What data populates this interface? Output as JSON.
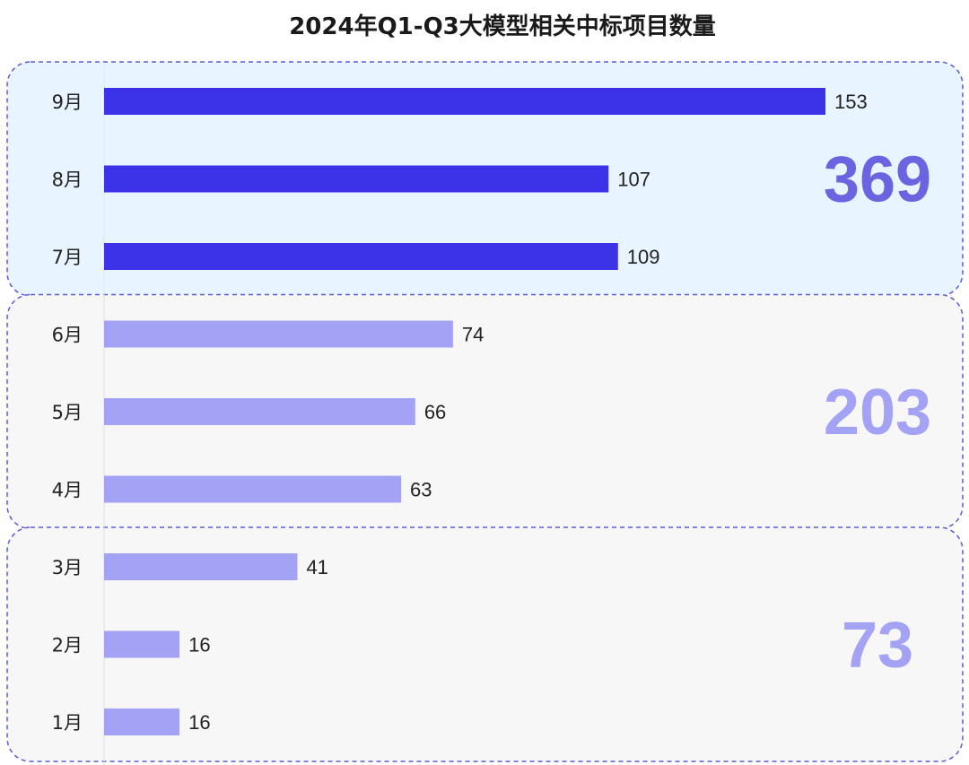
{
  "chart_data": {
    "type": "bar",
    "orientation": "horizontal",
    "title": "2024年Q1-Q3大模型相关中标项目数量",
    "categories": [
      "9月",
      "8月",
      "7月",
      "6月",
      "5月",
      "4月",
      "3月",
      "2月",
      "1月"
    ],
    "values": [
      153,
      107,
      109,
      74,
      66,
      63,
      41,
      16,
      16
    ],
    "xlim": [
      0,
      160
    ],
    "grid": false,
    "legend": "none",
    "groups": [
      {
        "months": [
          "9月",
          "8月",
          "7月"
        ],
        "total": "369",
        "bar_color": "#3c33e8",
        "total_color": "#6c63e0",
        "bg_color": "#e8f4ff"
      },
      {
        "months": [
          "6月",
          "5月",
          "4月"
        ],
        "total": "203",
        "bar_color": "#a3a2f5",
        "total_color": "#a3a2f5",
        "bg_color": "#f7f7f7"
      },
      {
        "months": [
          "3月",
          "2月",
          "1月"
        ],
        "total": "73",
        "bar_color": "#a3a2f5",
        "total_color": "#a3a2f5",
        "bg_color": "#f7f7f7"
      }
    ]
  },
  "colors": {
    "border": "#5b5bd6",
    "axis_line": "#e2e2e2",
    "text": "#222222"
  }
}
